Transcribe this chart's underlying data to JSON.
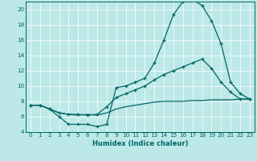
{
  "xlabel": "Humidex (Indice chaleur)",
  "xlim": [
    -0.5,
    23.5
  ],
  "ylim": [
    4,
    21
  ],
  "yticks": [
    4,
    6,
    8,
    10,
    12,
    14,
    16,
    18,
    20
  ],
  "xticks": [
    0,
    1,
    2,
    3,
    4,
    5,
    6,
    7,
    8,
    9,
    10,
    11,
    12,
    13,
    14,
    15,
    16,
    17,
    18,
    19,
    20,
    21,
    22,
    23
  ],
  "bg_color": "#bde8e8",
  "line_color": "#006666",
  "line1_x": [
    0,
    1,
    2,
    3,
    4,
    5,
    6,
    7,
    8,
    9,
    10,
    11,
    12,
    13,
    14,
    15,
    16,
    17,
    18,
    19,
    20,
    21,
    22,
    23
  ],
  "line1_y": [
    7.5,
    7.5,
    7.0,
    6.0,
    5.0,
    5.0,
    5.0,
    4.7,
    5.0,
    9.8,
    10.0,
    10.5,
    11.0,
    13.0,
    16.0,
    19.3,
    21.0,
    21.3,
    20.5,
    18.5,
    15.5,
    10.5,
    9.0,
    8.3
  ],
  "line2_x": [
    0,
    1,
    2,
    3,
    4,
    5,
    6,
    7,
    8,
    9,
    10,
    11,
    12,
    13,
    14,
    15,
    16,
    17,
    18,
    19,
    20,
    21,
    22,
    23
  ],
  "line2_y": [
    7.5,
    7.5,
    7.0,
    6.5,
    6.3,
    6.3,
    6.2,
    6.3,
    7.3,
    8.5,
    9.0,
    9.5,
    10.0,
    10.8,
    11.5,
    12.0,
    12.5,
    13.0,
    13.5,
    12.3,
    10.5,
    9.2,
    8.3,
    8.3
  ],
  "line3_x": [
    0,
    1,
    2,
    3,
    4,
    5,
    6,
    7,
    8,
    9,
    10,
    11,
    12,
    13,
    14,
    15,
    16,
    17,
    18,
    19,
    20,
    21,
    22,
    23
  ],
  "line3_y": [
    7.5,
    7.5,
    7.0,
    6.5,
    6.3,
    6.2,
    6.3,
    6.2,
    6.5,
    7.0,
    7.3,
    7.5,
    7.7,
    7.9,
    8.0,
    8.0,
    8.0,
    8.1,
    8.1,
    8.2,
    8.2,
    8.2,
    8.3,
    8.3
  ],
  "xlabel_fontsize": 6.0,
  "tick_fontsize": 5.2,
  "linewidth": 0.9,
  "marker_size": 3.0
}
